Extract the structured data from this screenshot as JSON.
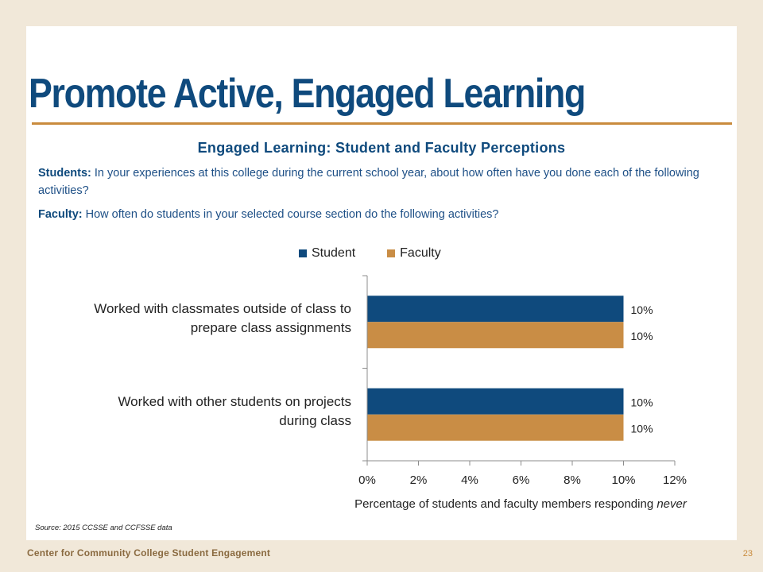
{
  "slide": {
    "title": "Promote Active, Engaged Learning",
    "source": "Source: 2015 CCSSE and CCFSSE data",
    "footer_org": "Center for Community College Student Engagement",
    "page_number": "23"
  },
  "questions": {
    "student_label": "Students:",
    "student_text": " In your experiences at this college during the current school year, about how often have you done each of the following activities?",
    "faculty_label": "Faculty:",
    "faculty_text": " How often do students in your selected course section do the following activities?"
  },
  "chart_data": {
    "type": "bar",
    "orientation": "horizontal",
    "title": "Engaged Learning: Student and Faculty Perceptions",
    "xlabel": "Percentage of students and faculty members responding ",
    "xlabel_emphasis": "never",
    "categories": [
      [
        "Worked with classmates outside of class to",
        "prepare class assignments"
      ],
      [
        "Worked with other students on projects",
        "during class"
      ]
    ],
    "series": [
      {
        "name": "Student",
        "color": "#0f4a7d",
        "values": [
          10,
          10
        ],
        "labels": [
          "10%",
          "10%"
        ]
      },
      {
        "name": "Faculty",
        "color": "#c98d45",
        "values": [
          10,
          10
        ],
        "labels": [
          "10%",
          "10%"
        ]
      }
    ],
    "xlim": [
      0,
      12
    ],
    "xticks": [
      "0%",
      "2%",
      "4%",
      "6%",
      "8%",
      "10%",
      "12%"
    ],
    "legend": "top",
    "grid": false
  }
}
